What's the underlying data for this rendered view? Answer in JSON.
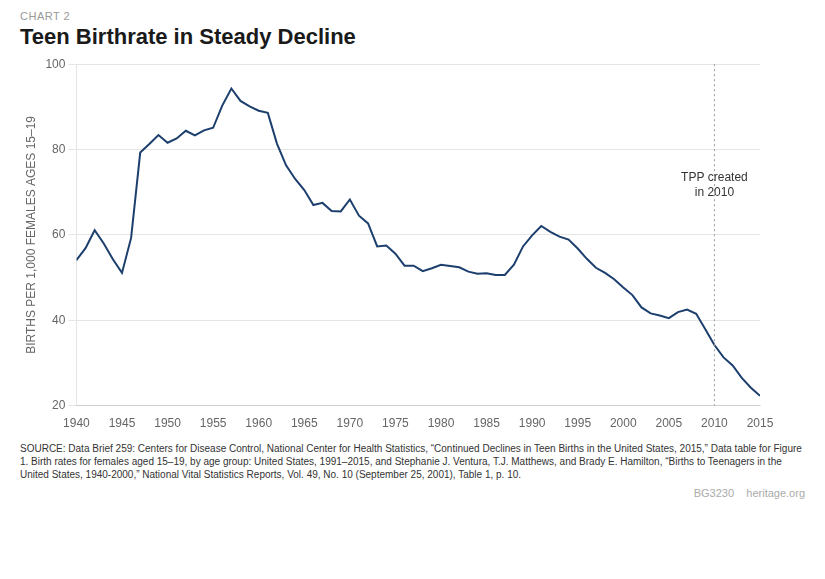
{
  "chart_data": {
    "type": "line",
    "chart_label": "CHART 2",
    "title": "Teen Birthrate in Steady Decline",
    "y_label": "BIRTHS PER 1,000 FEMALES AGES 15–19",
    "x": [
      1940,
      1941,
      1942,
      1943,
      1944,
      1945,
      1946,
      1947,
      1948,
      1949,
      1950,
      1951,
      1952,
      1953,
      1954,
      1955,
      1956,
      1957,
      1958,
      1959,
      1960,
      1961,
      1962,
      1963,
      1964,
      1965,
      1966,
      1967,
      1968,
      1969,
      1970,
      1971,
      1972,
      1973,
      1974,
      1975,
      1976,
      1977,
      1978,
      1979,
      1980,
      1981,
      1982,
      1983,
      1984,
      1985,
      1986,
      1987,
      1988,
      1989,
      1990,
      1991,
      1992,
      1993,
      1994,
      1995,
      1996,
      1997,
      1998,
      1999,
      2000,
      2001,
      2002,
      2003,
      2004,
      2005,
      2006,
      2007,
      2008,
      2009,
      2010,
      2011,
      2012,
      2013,
      2014,
      2015
    ],
    "values": [
      54.1,
      56.9,
      61.1,
      58.0,
      54.3,
      51.1,
      59.3,
      79.3,
      81.3,
      83.4,
      81.6,
      82.6,
      84.4,
      83.3,
      84.5,
      85.1,
      90.3,
      94.3,
      91.4,
      90.1,
      89.1,
      88.6,
      81.4,
      76.3,
      73.1,
      70.5,
      67.0,
      67.5,
      65.6,
      65.5,
      68.3,
      64.5,
      62.7,
      57.3,
      57.5,
      55.6,
      52.8,
      52.8,
      51.5,
      52.2,
      53.0,
      52.7,
      52.4,
      51.4,
      50.9,
      51.0,
      50.6,
      50.6,
      53.0,
      57.3,
      59.9,
      62.1,
      60.7,
      59.6,
      58.9,
      56.8,
      54.4,
      52.3,
      51.1,
      49.6,
      47.7,
      45.9,
      43.0,
      41.6,
      41.1,
      40.5,
      41.9,
      42.5,
      41.5,
      37.9,
      34.2,
      31.3,
      29.4,
      26.5,
      24.2,
      22.3
    ],
    "color": "#1c3f6e",
    "xlim": [
      1940,
      2015
    ],
    "xticks": [
      1940,
      1945,
      1950,
      1955,
      1960,
      1965,
      1970,
      1975,
      1980,
      1985,
      1990,
      1995,
      2000,
      2005,
      2010,
      2015
    ],
    "ylim": [
      20,
      100
    ],
    "yticks": [
      20,
      40,
      60,
      80,
      100
    ],
    "grid": "y",
    "annotations": [
      {
        "x": 2010,
        "y": 68,
        "text": [
          "TPP created",
          "in 2010"
        ],
        "line_style": "dotted"
      }
    ],
    "source": "SOURCE: Data Brief 259: Centers for Disease Control, National Center for Health Statistics, “Continued Declines in Teen Births in the United States, 2015,” Data table for Figure 1. Birth rates for females aged 15–19, by age group: United States, 1991–2015, and Stephanie J. Ventura, T.J. Matthews, and Brady E. Hamilton, “Births to Teenagers in the United States, 1940-2000,” National Vital Statistics Reports, Vol. 49, No. 10 (September 25, 2001), Table 1, p. 10.",
    "footer": "BG3230    heritage.org"
  }
}
